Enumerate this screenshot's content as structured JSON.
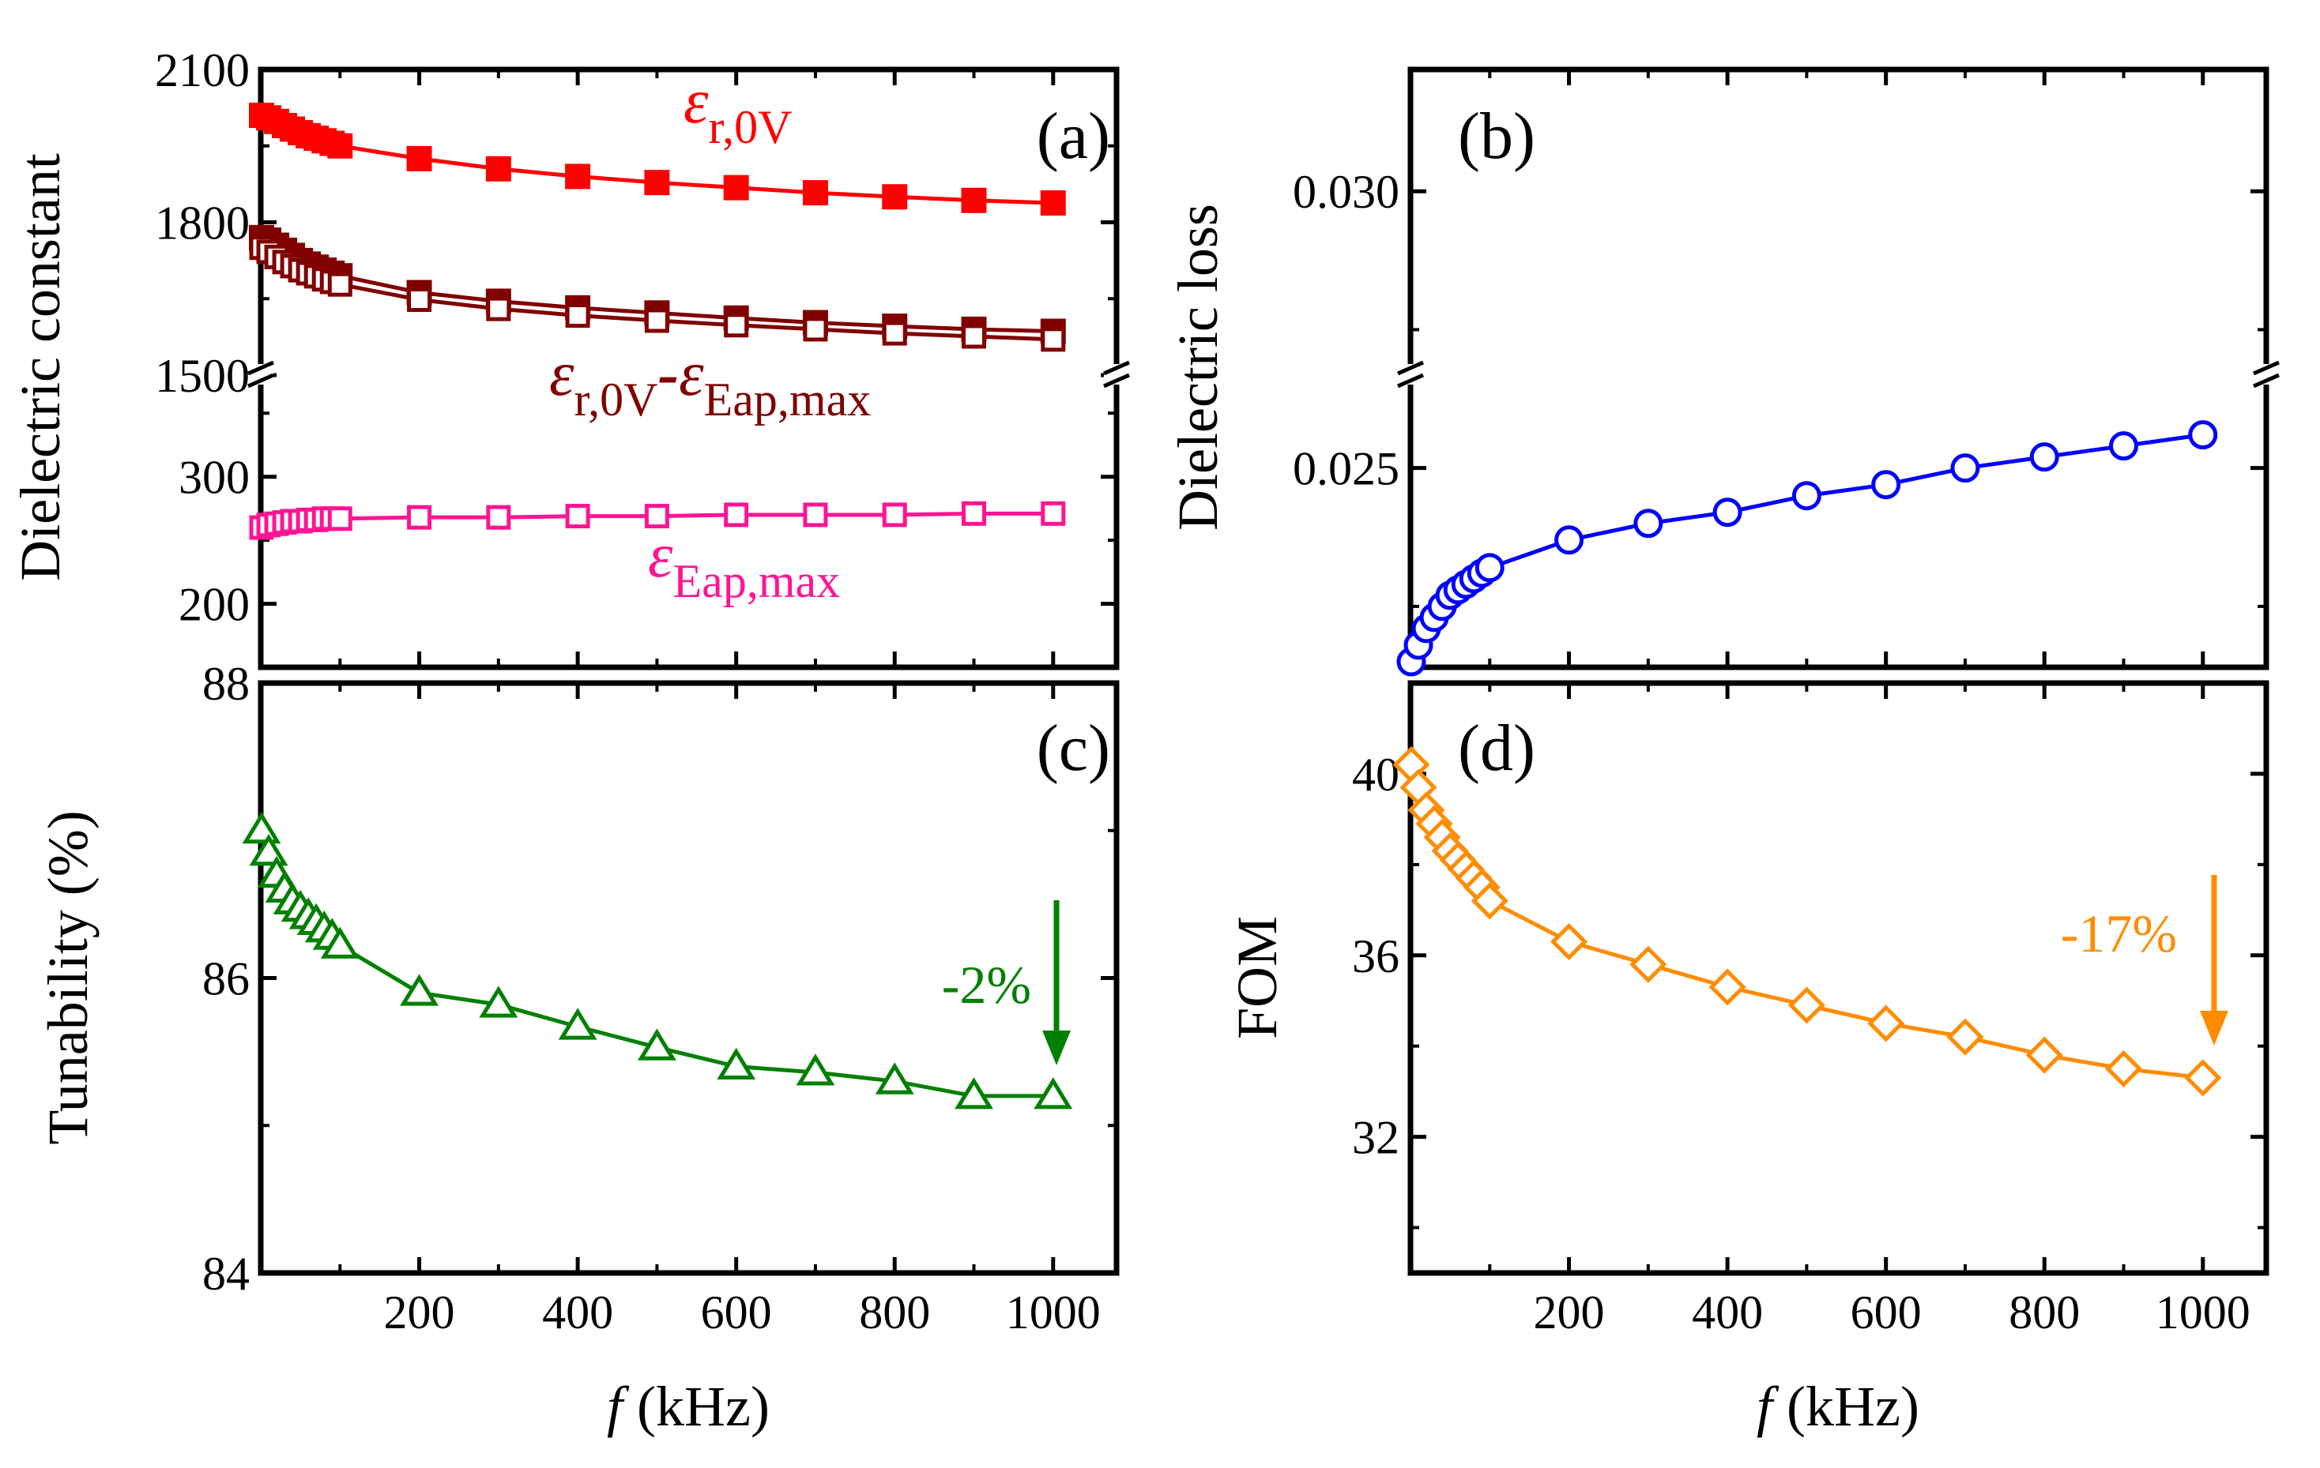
{
  "chart_data": [
    {
      "panel": "a",
      "type": "line",
      "panel_label": "(a)",
      "ylabel": "Dielectric constant",
      "xlim": [
        0,
        1080
      ],
      "broken_axis": true,
      "upper_ylim": [
        1500,
        2100
      ],
      "lower_ylim": [
        150,
        380
      ],
      "yticks_upper": [
        "2100",
        "1800",
        "1500"
      ],
      "yticks_lower": [
        "300",
        "200"
      ],
      "annotations": [
        {
          "id": "er0v",
          "sym": "ε",
          "sub": "r,0V",
          "color": "#ff0000"
        },
        {
          "id": "diff",
          "sym1": "ε",
          "sub1": "r,0V",
          "dash": "-",
          "sym2": "ε",
          "sub2": "Eap,max",
          "color": "#800000"
        },
        {
          "id": "eap",
          "sym": "ε",
          "sub": "Eap,max",
          "color": "#ff1493"
        }
      ],
      "series": [
        {
          "name": "εr,0V",
          "color": "#ff0000",
          "marker": "square-filled",
          "x": [
            1,
            10,
            20,
            30,
            40,
            50,
            60,
            70,
            80,
            90,
            100,
            200,
            300,
            400,
            500,
            600,
            700,
            800,
            900,
            1000
          ],
          "values": [
            2010,
            2005,
            1998,
            1990,
            1983,
            1976,
            1970,
            1965,
            1960,
            1955,
            1950,
            1925,
            1905,
            1890,
            1878,
            1868,
            1858,
            1850,
            1843,
            1838
          ]
        },
        {
          "name": "εr,0V-εEap,max (filled)",
          "color": "#800000",
          "marker": "square-filled",
          "x": [
            1,
            10,
            20,
            30,
            40,
            50,
            60,
            70,
            80,
            90,
            100,
            200,
            300,
            400,
            500,
            600,
            700,
            800,
            900,
            1000
          ],
          "values": [
            1770,
            1765,
            1755,
            1745,
            1735,
            1725,
            1718,
            1712,
            1706,
            1700,
            1695,
            1662,
            1645,
            1632,
            1622,
            1612,
            1603,
            1596,
            1590,
            1586
          ]
        },
        {
          "name": "εr,0V-εEap,max (open)",
          "color": "#800000",
          "marker": "square-open",
          "x": [
            1,
            10,
            20,
            30,
            40,
            50,
            60,
            70,
            80,
            90,
            100,
            200,
            300,
            400,
            500,
            600,
            700,
            800,
            900,
            1000
          ],
          "values": [
            1750,
            1742,
            1732,
            1722,
            1714,
            1706,
            1700,
            1694,
            1688,
            1683,
            1678,
            1648,
            1630,
            1617,
            1607,
            1598,
            1590,
            1582,
            1576,
            1570
          ]
        },
        {
          "name": "εEap,max",
          "color": "#ff1493",
          "marker": "square-open",
          "x": [
            1,
            10,
            20,
            30,
            40,
            50,
            60,
            70,
            80,
            90,
            100,
            200,
            300,
            400,
            500,
            600,
            700,
            800,
            900,
            1000
          ],
          "values": [
            260,
            262,
            263,
            264,
            265,
            265,
            266,
            266,
            267,
            267,
            267,
            268,
            268,
            269,
            269,
            270,
            270,
            270,
            271,
            271
          ]
        }
      ]
    },
    {
      "panel": "b",
      "type": "line",
      "panel_label": "(b)",
      "ylabel": "Dielectric loss",
      "xlim": [
        0,
        1080
      ],
      "ylim": [
        0.0214,
        0.0322
      ],
      "yticks": [
        "0.030",
        "0.025"
      ],
      "ytick_values": [
        0.03,
        0.025
      ],
      "series": [
        {
          "name": "Dielectric loss",
          "color": "#0000ff",
          "marker": "circle-open",
          "x": [
            1,
            10,
            20,
            30,
            40,
            50,
            60,
            70,
            80,
            90,
            100,
            200,
            300,
            400,
            500,
            600,
            700,
            800,
            900,
            1000
          ],
          "values": [
            0.0215,
            0.0218,
            0.0221,
            0.0223,
            0.0225,
            0.0227,
            0.0228,
            0.0229,
            0.023,
            0.0231,
            0.0232,
            0.0237,
            0.024,
            0.0242,
            0.0245,
            0.0247,
            0.025,
            0.0252,
            0.0254,
            0.0256
          ]
        }
      ]
    },
    {
      "panel": "c",
      "type": "line",
      "panel_label": "(c)",
      "ylabel": "Tunability (%)",
      "xlabel_italic": "f",
      "xlabel_unit": "(kHz)",
      "xlim": [
        0,
        1080
      ],
      "ylim": [
        84,
        88
      ],
      "yticks": [
        "88",
        "86",
        "84"
      ],
      "ytick_values": [
        88,
        86,
        84
      ],
      "xticks": [
        "200",
        "400",
        "600",
        "800",
        "1000"
      ],
      "xtick_values": [
        200,
        400,
        600,
        800,
        1000
      ],
      "annotation": "-2%",
      "annotation_color": "#008000",
      "series": [
        {
          "name": "Tunability",
          "color": "#008000",
          "marker": "triangle-open",
          "x": [
            1,
            10,
            20,
            30,
            40,
            50,
            60,
            70,
            80,
            90,
            100,
            200,
            300,
            400,
            500,
            600,
            700,
            800,
            900,
            1000
          ],
          "values": [
            87.0,
            86.85,
            86.7,
            86.6,
            86.52,
            86.47,
            86.42,
            86.38,
            86.33,
            86.28,
            86.22,
            85.9,
            85.82,
            85.67,
            85.53,
            85.4,
            85.36,
            85.3,
            85.2,
            85.2
          ]
        }
      ]
    },
    {
      "panel": "d",
      "type": "line",
      "panel_label": "(d)",
      "ylabel": "FOM",
      "xlabel_italic": "f",
      "xlabel_unit": "(kHz)",
      "xlim": [
        0,
        1080
      ],
      "ylim": [
        29,
        42
      ],
      "yticks": [
        "40",
        "36",
        "32"
      ],
      "ytick_values": [
        40,
        36,
        32
      ],
      "xticks": [
        "200",
        "400",
        "600",
        "800",
        "1000"
      ],
      "xtick_values": [
        200,
        400,
        600,
        800,
        1000
      ],
      "annotation": "-17%",
      "annotation_color": "#ff8c00",
      "series": [
        {
          "name": "FOM",
          "color": "#ff8c00",
          "marker": "diamond-open",
          "x": [
            1,
            10,
            20,
            30,
            40,
            50,
            60,
            70,
            80,
            90,
            100,
            200,
            300,
            400,
            500,
            600,
            700,
            800,
            900,
            1000
          ],
          "values": [
            40.2,
            39.7,
            39.2,
            38.9,
            38.6,
            38.3,
            38.1,
            37.9,
            37.7,
            37.5,
            37.2,
            36.3,
            35.8,
            35.3,
            34.9,
            34.5,
            34.2,
            33.8,
            33.5,
            33.3
          ]
        }
      ]
    }
  ]
}
